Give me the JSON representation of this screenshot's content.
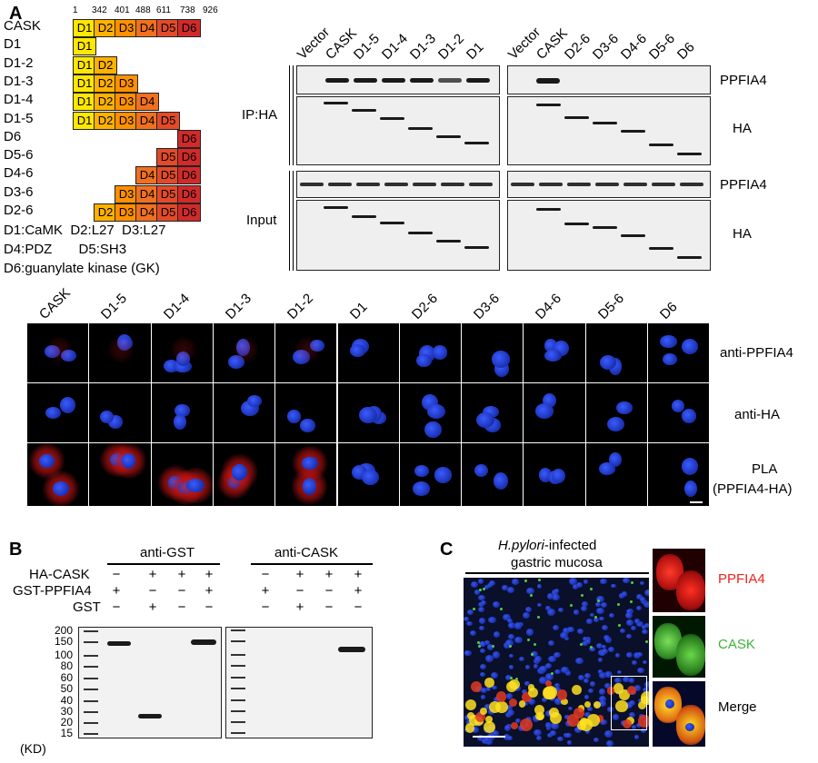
{
  "panelA": {
    "letter": "A",
    "ticks": [
      "1",
      "342",
      "401",
      "488",
      "611",
      "738",
      "926"
    ],
    "domain_colors": {
      "D1": "#ffe700",
      "D2": "#ffb100",
      "D3": "#ff9000",
      "D4": "#f07020",
      "D5": "#e24a2a",
      "D6": "#d02a2a"
    },
    "constructs": [
      {
        "label": "CASK",
        "domains": [
          "D1",
          "D2",
          "D3",
          "D4",
          "D5",
          "D6"
        ]
      },
      {
        "label": "D1",
        "domains": [
          "D1"
        ]
      },
      {
        "label": "D1-2",
        "domains": [
          "D1",
          "D2"
        ]
      },
      {
        "label": "D1-3",
        "domains": [
          "D1",
          "D2",
          "D3"
        ]
      },
      {
        "label": "D1-4",
        "domains": [
          "D1",
          "D2",
          "D3",
          "D4"
        ]
      },
      {
        "label": "D1-5",
        "domains": [
          "D1",
          "D2",
          "D3",
          "D4",
          "D5"
        ]
      },
      {
        "label": "D6",
        "domains": [
          "D6"
        ]
      },
      {
        "label": "D5-6",
        "domains": [
          "D5",
          "D6"
        ]
      },
      {
        "label": "D4-6",
        "domains": [
          "D4",
          "D5",
          "D6"
        ]
      },
      {
        "label": "D3-6",
        "domains": [
          "D3",
          "D4",
          "D5",
          "D6"
        ]
      },
      {
        "label": "D2-6",
        "domains": [
          "D2",
          "D3",
          "D4",
          "D5",
          "D6"
        ]
      }
    ],
    "legend": [
      "D1:CaMK  D2:L27  D3:L27",
      "D4:PDZ       D5:SH3",
      "D6:guanylate kinase (GK)"
    ],
    "blot_lanes_left": [
      "Vector",
      "CASK",
      "D1-5",
      "D1-4",
      "D1-3",
      "D1-2",
      "D1"
    ],
    "blot_lanes_right": [
      "Vector",
      "CASK",
      "D2-6",
      "D3-6",
      "D4-6",
      "D5-6",
      "D6"
    ],
    "ip_label": "IP:HA",
    "input_label": "Input",
    "right_labels": [
      "PPFIA4",
      "HA",
      "PPFIA4",
      "HA"
    ],
    "micro_cols": [
      "CASK",
      "D1-5",
      "D1-4",
      "D1-3",
      "D1-2",
      "D1",
      "D2-6",
      "D3-6",
      "D4-6",
      "D5-6",
      "D6"
    ],
    "micro_rows": [
      "anti-PPFIA4",
      "anti-HA",
      "PLA",
      "(PPFIA4-HA)"
    ]
  },
  "panelB": {
    "letter": "B",
    "group_left": "anti-GST",
    "group_right": "anti-CASK",
    "rows": [
      {
        "label": "HA-CASK",
        "signs": [
          "−",
          "+",
          "+",
          "+"
        ]
      },
      {
        "label": "GST-PPFIA4",
        "signs": [
          "+",
          "−",
          "−",
          "+"
        ]
      },
      {
        "label": "GST",
        "signs": [
          "−",
          "+",
          "−",
          "−"
        ]
      }
    ],
    "markers": [
      "200",
      "150",
      "100",
      "80",
      "60",
      "50",
      "40",
      "30",
      "20",
      "15"
    ],
    "unit": "(KD)"
  },
  "panelC": {
    "letter": "C",
    "title_italic": "H.pylori",
    "title_rest": "-infected",
    "title_line2": "gastric mucosa",
    "channels": [
      {
        "label": "PPFIA4",
        "color": "#e8231e"
      },
      {
        "label": "CASK",
        "color": "#3fb23a"
      },
      {
        "label": "Merge",
        "color": "#000000"
      }
    ]
  }
}
